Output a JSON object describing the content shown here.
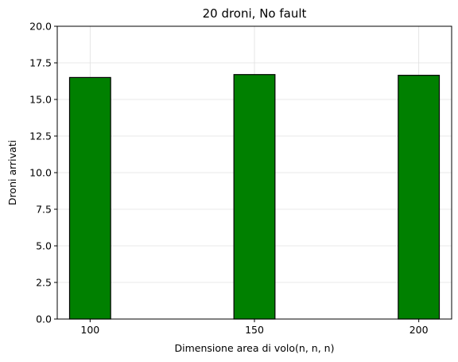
{
  "chart_data": {
    "type": "bar",
    "title": "20 droni, No fault",
    "xlabel": "Dimensione area di volo(n, n, n)",
    "ylabel": "Droni arrivati",
    "categories": [
      "100",
      "150",
      "200"
    ],
    "x": [
      100,
      150,
      200
    ],
    "values": [
      16.5,
      16.7,
      16.65
    ],
    "xlim": [
      90,
      210
    ],
    "ylim": [
      0,
      20
    ],
    "yticks": [
      "0.0",
      "2.5",
      "5.0",
      "7.5",
      "10.0",
      "12.5",
      "15.0",
      "17.5",
      "20.0"
    ],
    "grid": true,
    "bar_color": "#008000",
    "edge_color": "#000000"
  }
}
